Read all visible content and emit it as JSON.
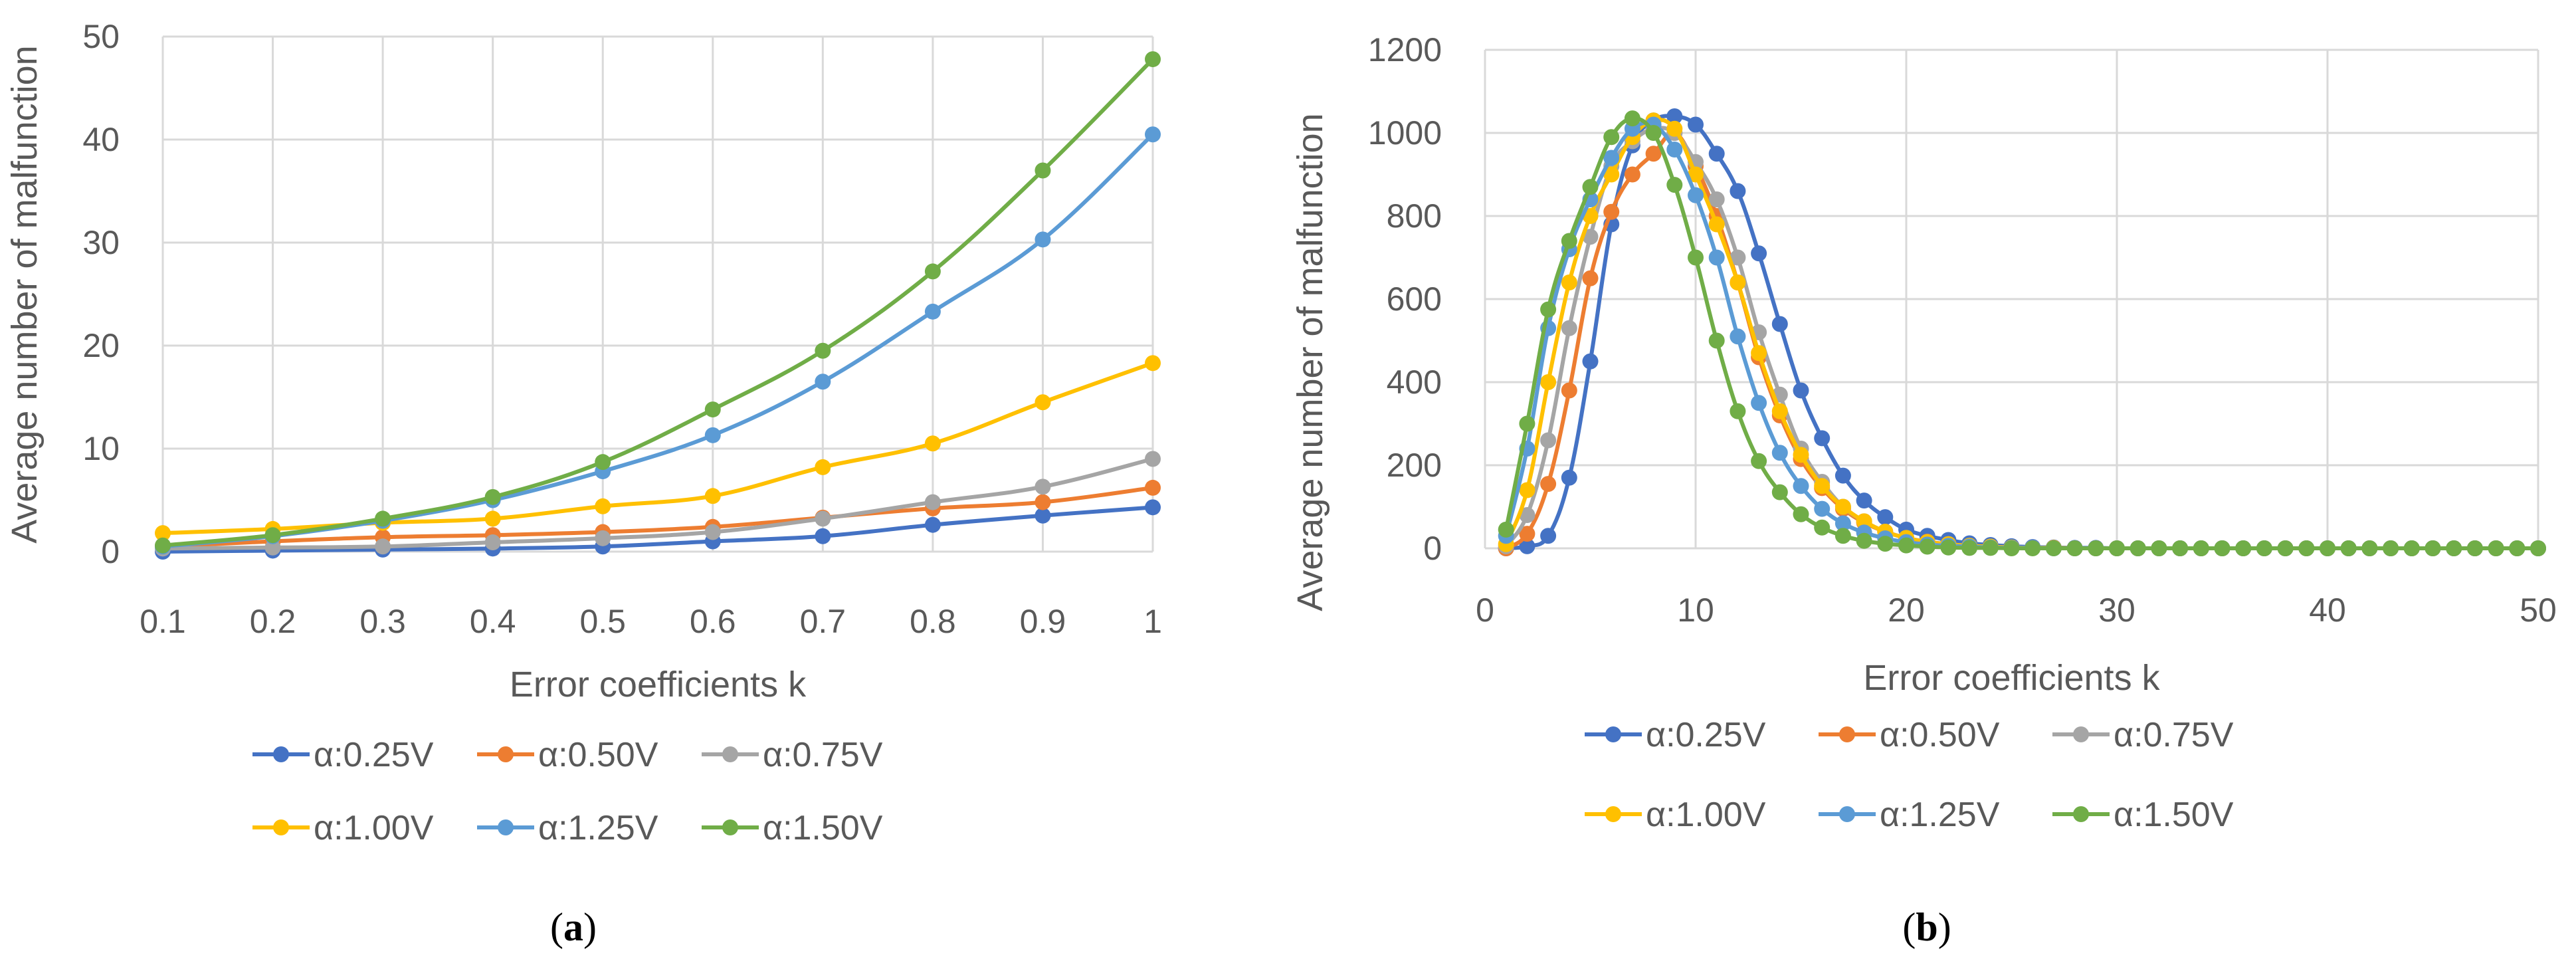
{
  "chart_data": [
    {
      "type": "line",
      "panel_label": "a",
      "xlabel": "Error coefficients k",
      "ylabel": "Average number of malfunction",
      "x": [
        0.1,
        0.2,
        0.3,
        0.4,
        0.5,
        0.6,
        0.7,
        0.8,
        0.9,
        1
      ],
      "x_ticks": [
        "0.1",
        "0.2",
        "0.3",
        "0.4",
        "0.5",
        "0.6",
        "0.7",
        "0.8",
        "0.9",
        "1"
      ],
      "ylim": [
        0,
        50
      ],
      "y_ticks": [
        0,
        10,
        20,
        30,
        40,
        50
      ],
      "grid": true,
      "legend_position": "bottom",
      "series": [
        {
          "name": "α:0.25V",
          "color": "#4472C4",
          "values": [
            0,
            0.1,
            0.2,
            0.3,
            0.5,
            1.0,
            1.5,
            2.6,
            3.5,
            4.3
          ]
        },
        {
          "name": "α:0.50V",
          "color": "#ED7D31",
          "values": [
            0.5,
            1.0,
            1.4,
            1.6,
            1.9,
            2.4,
            3.3,
            4.2,
            4.8,
            6.2
          ]
        },
        {
          "name": "α:0.75V",
          "color": "#A5A5A5",
          "values": [
            0.3,
            0.4,
            0.5,
            0.9,
            1.3,
            1.9,
            3.2,
            4.8,
            6.3,
            9.0
          ]
        },
        {
          "name": "α:1.00V",
          "color": "#FFC000",
          "values": [
            1.8,
            2.2,
            2.8,
            3.2,
            4.4,
            5.4,
            8.2,
            10.5,
            14.5,
            18.3
          ]
        },
        {
          "name": "α:1.25V",
          "color": "#5B9BD5",
          "values": [
            0.5,
            1.5,
            3.0,
            5.0,
            7.8,
            11.3,
            16.5,
            23.3,
            30.3,
            40.5
          ]
        },
        {
          "name": "α:1.50V",
          "color": "#70AD47",
          "values": [
            0.6,
            1.6,
            3.2,
            5.3,
            8.7,
            13.8,
            19.5,
            27.2,
            37.0,
            47.8
          ]
        }
      ]
    },
    {
      "type": "line",
      "panel_label": "b",
      "xlabel": "Error coefficients k",
      "ylabel": "Average number of malfunction",
      "x": [
        1,
        2,
        3,
        4,
        5,
        6,
        7,
        8,
        9,
        10,
        11,
        12,
        13,
        14,
        15,
        16,
        17,
        18,
        19,
        20,
        21,
        22,
        23,
        24,
        25,
        26,
        27,
        28,
        29,
        30,
        31,
        32,
        33,
        34,
        35,
        36,
        37,
        38,
        39,
        40,
        41,
        42,
        43,
        44,
        45,
        46,
        47,
        48,
        49,
        50
      ],
      "xlim": [
        0,
        50
      ],
      "x_ticks": [
        0,
        10,
        20,
        30,
        40,
        50
      ],
      "ylim": [
        0,
        1200
      ],
      "y_ticks": [
        0,
        200,
        400,
        600,
        800,
        1000,
        1200
      ],
      "grid": true,
      "legend_position": "bottom",
      "series": [
        {
          "name": "α:0.25V",
          "color": "#4472C4",
          "values": [
            0,
            5,
            30,
            170,
            450,
            780,
            970,
            1030,
            1040,
            1020,
            950,
            860,
            710,
            540,
            380,
            265,
            175,
            115,
            75,
            45,
            30,
            20,
            12,
            8,
            5,
            3,
            2,
            1,
            1,
            0,
            0,
            0,
            0,
            0,
            0,
            0,
            0,
            0,
            0,
            0,
            0,
            0,
            0,
            0,
            0,
            0,
            0,
            0,
            0,
            0
          ]
        },
        {
          "name": "α:0.50V",
          "color": "#ED7D31",
          "values": [
            0,
            35,
            155,
            380,
            650,
            810,
            900,
            950,
            1000,
            920,
            800,
            640,
            460,
            320,
            215,
            145,
            95,
            62,
            40,
            25,
            16,
            10,
            6,
            4,
            2,
            1,
            1,
            0,
            0,
            0,
            0,
            0,
            0,
            0,
            0,
            0,
            0,
            0,
            0,
            0,
            0,
            0,
            0,
            0,
            0,
            0,
            0,
            0,
            0,
            0
          ]
        },
        {
          "name": "α:0.75V",
          "color": "#A5A5A5",
          "values": [
            5,
            80,
            260,
            530,
            750,
            920,
            980,
            1010,
            1000,
            930,
            840,
            700,
            520,
            370,
            240,
            160,
            100,
            65,
            40,
            25,
            15,
            10,
            6,
            4,
            2,
            1,
            1,
            0,
            0,
            0,
            0,
            0,
            0,
            0,
            0,
            0,
            0,
            0,
            0,
            0,
            0,
            0,
            0,
            0,
            0,
            0,
            0,
            0,
            0,
            0
          ]
        },
        {
          "name": "α:1.00V",
          "color": "#FFC000",
          "values": [
            10,
            140,
            400,
            640,
            800,
            900,
            990,
            1030,
            1010,
            900,
            780,
            640,
            470,
            330,
            225,
            150,
            100,
            65,
            40,
            25,
            15,
            10,
            6,
            4,
            2,
            1,
            1,
            0,
            0,
            0,
            0,
            0,
            0,
            0,
            0,
            0,
            0,
            0,
            0,
            0,
            0,
            0,
            0,
            0,
            0,
            0,
            0,
            0,
            0,
            0
          ]
        },
        {
          "name": "α:1.25V",
          "color": "#5B9BD5",
          "values": [
            30,
            240,
            530,
            720,
            840,
            940,
            1010,
            1020,
            960,
            850,
            700,
            510,
            350,
            230,
            150,
            95,
            60,
            38,
            24,
            15,
            9,
            6,
            4,
            2,
            1,
            1,
            0,
            0,
            0,
            0,
            0,
            0,
            0,
            0,
            0,
            0,
            0,
            0,
            0,
            0,
            0,
            0,
            0,
            0,
            0,
            0,
            0,
            0,
            0,
            0
          ]
        },
        {
          "name": "α:1.50V",
          "color": "#70AD47",
          "values": [
            45,
            300,
            575,
            740,
            870,
            990,
            1035,
            1000,
            875,
            700,
            500,
            330,
            210,
            135,
            82,
            50,
            30,
            18,
            11,
            7,
            4,
            2,
            1,
            1,
            0,
            0,
            0,
            0,
            0,
            0,
            0,
            0,
            0,
            0,
            0,
            0,
            0,
            0,
            0,
            0,
            0,
            0,
            0,
            0,
            0,
            0,
            0,
            0,
            0,
            0
          ]
        }
      ]
    }
  ]
}
